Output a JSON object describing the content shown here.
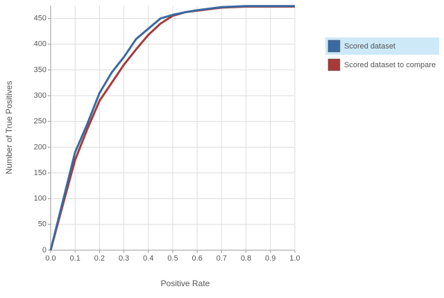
{
  "chart_data": {
    "type": "line",
    "x_label": "Positive Rate",
    "y_label": "Number of True Positives",
    "x": [
      0,
      0.05,
      0.1,
      0.15,
      0.2,
      0.25,
      0.3,
      0.35,
      0.4,
      0.45,
      0.5,
      0.55,
      0.6,
      0.7,
      0.8,
      0.9,
      1
    ],
    "series": [
      {
        "name": "Scored dataset",
        "color": "#3a6aa0",
        "values": [
          0,
          95,
          190,
          245,
          305,
          345,
          375,
          410,
          430,
          450,
          457,
          462,
          466,
          472,
          474,
          474,
          474
        ]
      },
      {
        "name": "Scored dataset to compare",
        "color": "#a83a3a",
        "values": [
          0,
          88,
          175,
          235,
          290,
          325,
          360,
          390,
          418,
          440,
          455,
          462,
          465,
          471,
          473,
          473,
          473
        ]
      }
    ],
    "xlim": [
      0,
      1
    ],
    "xticks": [
      {
        "value": 0,
        "label": "0.0"
      },
      0.1,
      0.2,
      0.3,
      0.4,
      0.5,
      0.6,
      0.7,
      0.8,
      0.9,
      {
        "value": 1,
        "label": "1.0"
      }
    ],
    "ylim": [
      0,
      475
    ],
    "yticks": [
      0,
      50,
      100,
      150,
      200,
      250,
      300,
      350,
      400,
      450
    ],
    "grid": true,
    "legend_position": "right"
  }
}
